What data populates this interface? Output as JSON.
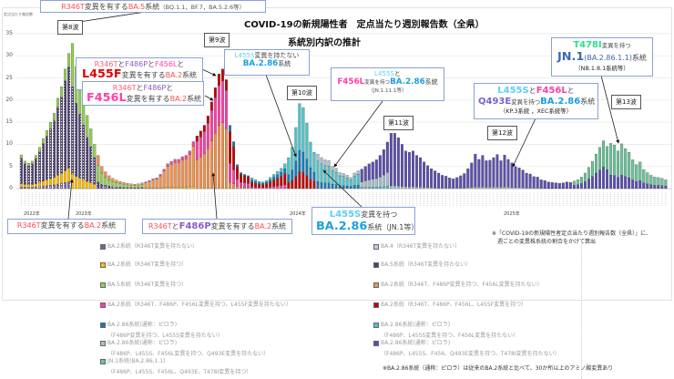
{
  "title": {
    "line1": "COVID-19の新規陽性者　定点当たり週別報告数（全県）",
    "line2": "系統別内訳の推計"
  },
  "chart_data": {
    "type": "bar",
    "stacked": true,
    "title": "COVID-19の新規陽性者　定点当たり週別報告数（全県） 系統別内訳の推計",
    "ylabel": "定点当たり報告数",
    "xlabel": "",
    "ylim": [
      0,
      35
    ],
    "yticks": [
      "0",
      "5",
      "10",
      "15",
      "20",
      "25",
      "30",
      "35"
    ],
    "grid": true,
    "legend_placement": "bottom",
    "year_labels": [
      "2022年",
      "2023年",
      "2024年",
      "2025年"
    ],
    "weekly_totals": [
      7.6,
      6.2,
      5.7,
      6.2,
      7.5,
      9.3,
      11.3,
      13.1,
      15,
      17,
      20.4,
      23,
      27,
      30.5,
      32.8,
      27.5,
      24,
      20.5,
      16.5,
      13.5,
      10,
      7.5,
      5,
      3.8,
      2.9,
      2.3,
      1.9,
      1.6,
      1.4,
      1.2,
      1.1,
      1.0,
      1.1,
      1.3,
      1.5,
      1.8,
      2.2,
      2.4,
      3.2,
      4.4,
      5.6,
      6.1,
      6.6,
      6.6,
      7.2,
      7.5,
      8.5,
      10.6,
      11.9,
      13.0,
      14.3,
      16.4,
      19.6,
      22.8,
      25.9,
      27.0,
      24.6,
      14.3,
      10.6,
      5.4,
      3.6,
      3.2,
      2.9,
      2.4,
      2.0,
      1.6,
      1.5,
      1.8,
      2.5,
      3.2,
      3.9,
      4.6,
      5.6,
      7.0,
      9.3,
      13.8,
      19.2,
      18.3,
      14.8,
      10.5,
      8.2,
      7.8,
      7.0,
      6.5,
      6.3,
      5.0,
      4.6,
      3.6,
      3.4,
      3.0,
      2.5,
      3.5,
      4.0,
      4.4,
      5.0,
      5.6,
      6.0,
      6.5,
      7.5,
      8.8,
      10.5,
      12.5,
      12.5,
      11.5,
      10.0,
      8.5,
      8.2,
      8.5,
      7.5,
      7.0,
      6.0,
      5.2,
      4.5,
      4.0,
      3.5,
      3.0,
      2.8,
      2.4,
      2.2,
      2.5,
      2.9,
      3.4,
      4.5,
      5.8,
      7.8,
      6.6,
      7.5,
      6.3,
      6.4,
      7.0,
      7.7,
      6.3,
      7.6,
      6.6,
      5.8,
      5.0,
      4.7,
      4.2,
      3.5,
      3.3,
      2.7,
      2.6,
      2.0,
      1.8,
      1.5,
      1.4,
      1.3,
      1.2,
      1.3,
      1.5,
      1.4,
      1.7,
      2.0,
      2.6,
      3.5,
      4.8,
      6.1,
      7.8,
      9.3,
      10.8,
      9.5,
      10.2,
      9.8,
      8.5,
      10.1,
      9.0,
      8.2,
      6.5,
      5.4,
      6.0,
      4.3,
      3.6,
      3.0,
      2.6,
      2.5,
      2.3,
      2.0
    ],
    "series": [
      {
        "name": "BA.2系統（R346T変異を持たない）",
        "color": "#7b5ea7",
        "hatched": true
      },
      {
        "name": "BA.4（R346T変異を持たない）",
        "color": "#c9c9e6"
      },
      {
        "name": "BA.2系統（R346T変異を持つ）",
        "color": "#ffc000"
      },
      {
        "name": "BA.5系統（R346T変異を持たない）",
        "color": "#4e4270",
        "hatched": true
      },
      {
        "name": "BA.5系統（R346T変異を持つ）",
        "color": "#92d050"
      },
      {
        "name": "BA.2系統（R346T、F486P変異を持つ、F456L変異を持たない）",
        "color": "#f4904a"
      },
      {
        "name": "BA.2系統（R346T、F486P、F456L変異を持つ、L455F変異を持たない）",
        "color": "#ff3fa6"
      },
      {
        "name": "BA.2系統（R346T、F486P、F456L、L455F変異を持つ）",
        "color": "#c00000"
      },
      {
        "name": "BA.2.86系統(通称：ピロラ)（F486P変異を持つ、L455S変異を持たない）",
        "color": "#0f7bb8"
      },
      {
        "name": "BA.2.86系統(通称：ピロラ)（F486P、L455S変異を持つ、F456L変異を持たない）",
        "color": "#48c4cc"
      },
      {
        "name": "BA.2.86系統(通称：ピロラ)（F486P、L455S、F456L変異を持つ、Q493E変異を持たない）",
        "color": "#a9bfcf"
      },
      {
        "name": "BA.2.86系統(通称：ピロラ)（F486P、L455S、F456、Q493E変異を持つ、T478I変異を持たない）",
        "color": "#5b4fae"
      },
      {
        "name": "JN.1系統(BA.2.86.1.1)（F486P、L455S、F456L、Q493E、T478I変異を持つ）",
        "color": "#6cc49a"
      }
    ],
    "composition_by_week": [
      {
        "weeks": [
          0,
          13
        ],
        "shares": {
          "3": 0.75,
          "2": 0.1,
          "4": 0.1,
          "0": 0.05
        }
      },
      {
        "weeks": [
          14,
          20
        ],
        "shares": {
          "3": 0.6,
          "2": 0.1,
          "4": 0.3
        }
      },
      {
        "weeks": [
          21,
          33
        ],
        "shares": {
          "4": 0.5,
          "3": 0.2,
          "5": 0.3
        }
      },
      {
        "weeks": [
          34,
          47
        ],
        "shares": {
          "5": 0.85,
          "2": 0.05,
          "6": 0.1
        }
      },
      {
        "weeks": [
          48,
          56
        ],
        "shares": {
          "5": 0.55,
          "6": 0.35,
          "7": 0.1
        }
      },
      {
        "weeks": [
          57,
          62
        ],
        "shares": {
          "5": 0.1,
          "6": 0.3,
          "7": 0.5,
          "8": 0.1
        }
      },
      {
        "weeks": [
          63,
          72
        ],
        "shares": {
          "7": 0.45,
          "6": 0.15,
          "8": 0.2,
          "9": 0.2
        }
      },
      {
        "weeks": [
          73,
          80
        ],
        "shares": {
          "7": 0.2,
          "8": 0.25,
          "9": 0.55
        }
      },
      {
        "weeks": [
          81,
          92
        ],
        "shares": {
          "9": 0.6,
          "8": 0.2,
          "10": 0.2
        }
      },
      {
        "weeks": [
          93,
          100
        ],
        "shares": {
          "10": 0.3,
          "11": 0.65,
          "9": 0.05
        }
      },
      {
        "weeks": [
          101,
          150
        ],
        "shares": {
          "11": 0.95,
          "10": 0.05
        }
      },
      {
        "weeks": [
          151,
          160
        ],
        "shares": {
          "11": 0.45,
          "12": 0.55
        }
      },
      {
        "weeks": [
          161,
          177
        ],
        "shares": {
          "11": 0.3,
          "12": 0.7
        }
      }
    ]
  },
  "waves": [
    "第8波",
    "第9波",
    "第10波",
    "第11波",
    "第12波",
    "第13波"
  ],
  "callouts": {
    "ba5_r346t": [
      [
        {
          "t": "R346T",
          "c": "#ff4d4d"
        },
        {
          "t": "変異を有する",
          "c": "#444"
        },
        {
          "t": "BA.5",
          "c": "#ff4d4d"
        },
        {
          "t": "系統",
          "c": "#444"
        },
        {
          "t": "（BQ.1.1，BF.7，BA.5.2.6等）",
          "c": "#555",
          "s": "small"
        }
      ]
    ],
    "l455f": [
      [
        {
          "t": "R346T",
          "c": "#ff5a7a"
        },
        {
          "t": "と",
          "c": "#444"
        },
        {
          "t": "F486P",
          "c": "#8a5cc8"
        },
        {
          "t": "と",
          "c": "#444"
        },
        {
          "t": "F456L",
          "c": "#ff3fa6"
        },
        {
          "t": "と",
          "c": "#444"
        }
      ],
      [
        {
          "t": "L455F",
          "c": "#e00000",
          "s": "big"
        },
        {
          "t": "変異を有する",
          "c": "#444"
        },
        {
          "t": "BA.2",
          "c": "#ff4d4d"
        },
        {
          "t": "系統",
          "c": "#444"
        }
      ]
    ],
    "f456l": [
      [
        {
          "t": "R346T",
          "c": "#ff5a7a"
        },
        {
          "t": "と",
          "c": "#444"
        },
        {
          "t": "F486P",
          "c": "#8a5cc8"
        },
        {
          "t": "と",
          "c": "#444"
        }
      ],
      [
        {
          "t": "F456L",
          "c": "#ff3fa6",
          "s": "big"
        },
        {
          "t": "変異を有する",
          "c": "#444"
        },
        {
          "t": "BA.2",
          "c": "#ff4d4d"
        },
        {
          "t": "系統",
          "c": "#444"
        }
      ]
    ],
    "no_l455s": [
      [
        {
          "t": "L455S",
          "c": "#5ccff0"
        },
        {
          "t": "変異を持たない",
          "c": "#444"
        }
      ],
      [
        {
          "t": "BA.2.86",
          "c": "#1aa0e0",
          "s": "bold"
        },
        {
          "t": "系統",
          "c": "#444"
        }
      ]
    ],
    "jn1111": [
      [
        {
          "t": "L455S",
          "c": "#5ccff0"
        },
        {
          "t": "と",
          "c": "#444"
        }
      ],
      [
        {
          "t": "F456L",
          "c": "#ff3fa6",
          "s": "bold"
        },
        {
          "t": "変異を持つ",
          "c": "#444",
          "s": "small"
        },
        {
          "t": "BA.2.86",
          "c": "#1aa0e0",
          "s": "bold"
        },
        {
          "t": "系統",
          "c": "#444"
        }
      ],
      [
        {
          "t": "（JN.1.11.1等）",
          "c": "#555",
          "s": "small"
        }
      ]
    ],
    "q493e": [
      [
        {
          "t": "L455S",
          "c": "#5ccff0",
          "s": "bold"
        },
        {
          "t": "と",
          "c": "#444"
        },
        {
          "t": "F456L",
          "c": "#ff3fa6",
          "s": "bold"
        },
        {
          "t": "と",
          "c": "#444"
        }
      ],
      [
        {
          "t": "Q493E",
          "c": "#7a62d0",
          "s": "bold"
        },
        {
          "t": "変異を持つ",
          "c": "#444",
          "s": "small"
        },
        {
          "t": "BA.2.86",
          "c": "#1aa0e0",
          "s": "bold"
        },
        {
          "t": "系統",
          "c": "#444"
        }
      ],
      [
        {
          "t": "（KP.3系統 ，XEC系統等）",
          "c": "#222",
          "s": "small"
        }
      ]
    ],
    "t478i": [
      [
        {
          "t": "T478I",
          "c": "#2ee08a",
          "s": "bold"
        },
        {
          "t": "変異を持つ",
          "c": "#444",
          "s": "small"
        }
      ],
      [
        {
          "t": "JN.1",
          "c": "#3a6ab0",
          "s": "big"
        },
        {
          "t": "(BA.2.86.1.1)",
          "c": "#3a6ab0"
        },
        {
          "t": "系統",
          "c": "#444"
        }
      ],
      [
        {
          "t": "（NB.1.8.1系統等）",
          "c": "#222",
          "s": "small"
        }
      ]
    ],
    "ba2_r346t": [
      [
        {
          "t": "R346T",
          "c": "#ff4d4d"
        },
        {
          "t": "変異を有する",
          "c": "#444"
        },
        {
          "t": "BA.2",
          "c": "#ff4d4d"
        },
        {
          "t": "系統",
          "c": "#444"
        }
      ]
    ],
    "f486p": [
      [
        {
          "t": "R346T",
          "c": "#ff4d4d"
        },
        {
          "t": "と",
          "c": "#444"
        },
        {
          "t": "F486P",
          "c": "#8a5cc8",
          "s": "bold"
        },
        {
          "t": "変異を有する",
          "c": "#444"
        },
        {
          "t": "BA.2",
          "c": "#ff4d4d"
        },
        {
          "t": "系統",
          "c": "#444"
        }
      ]
    ],
    "jn1": [
      [
        {
          "t": "L455S",
          "c": "#5ccff0",
          "s": "bold"
        },
        {
          "t": "変異を持つ",
          "c": "#444"
        }
      ],
      [
        {
          "t": "BA.2.86",
          "c": "#1aa0e0",
          "s": "big"
        },
        {
          "t": "系統（JN.1等）",
          "c": "#444"
        }
      ]
    ]
  },
  "legend": [
    {
      "line1": "BA.2系統（R346T変異を持たない）"
    },
    {
      "line1": "BA.4（R346T変異を持たない）"
    },
    {
      "line1": "BA.2系統（R346T変異を持つ）"
    },
    {
      "line1": "BA.5系統（R346T変異を持たない）"
    },
    {
      "line1": "BA.5系統（R346T変異を持つ）"
    },
    {
      "line1": "BA.2系統（R346T、F486P変異を持つ、F456L変異を持たない）"
    },
    {
      "line1": "BA.2系統（R346T、F486P、F456L変異を持つ、L455F変異を持たない）"
    },
    {
      "line1": "BA.2系統（R346T、F486P、F456L、L455F変異を持つ）"
    },
    {
      "line1": "BA.2.86系統(通称：ピロラ)",
      "line2": "（F486P変異を持つ、L455S変異を持たない）"
    },
    {
      "line1": "BA.2.86系統(通称：ピロラ)",
      "line2": "（F486P、L455S変異を持つ、F456L変異を持たない）"
    },
    {
      "line1": "BA.2.86系統(通称：ピロラ)",
      "line2": "（F486P、L455S、F456L変異を持つ、Q493E変異を持たない）"
    },
    {
      "line1": "BA.2.86系統(通称：ピロラ)",
      "line2": "（F486P、L455S、F456、Q493E変異を持つ、T478I変異を持たない）"
    },
    {
      "line1": "JN.1系統(BA.2.86.1.1)",
      "line2": "（F486P、L455S、F456L、Q493E、T478I変異を持つ）"
    }
  ],
  "notes": {
    "method_line1": "※「COVID-19の新規陽性者定点当たり週別報告数（全県）」に、",
    "method_line2": "週ごとの変異株系統の割合をかけて算出",
    "footnote": "※BA.2.86系統（通称：ピロラ）は従来のBA.2系統と比べて、30か所以上のアミノ酸変異あり"
  }
}
